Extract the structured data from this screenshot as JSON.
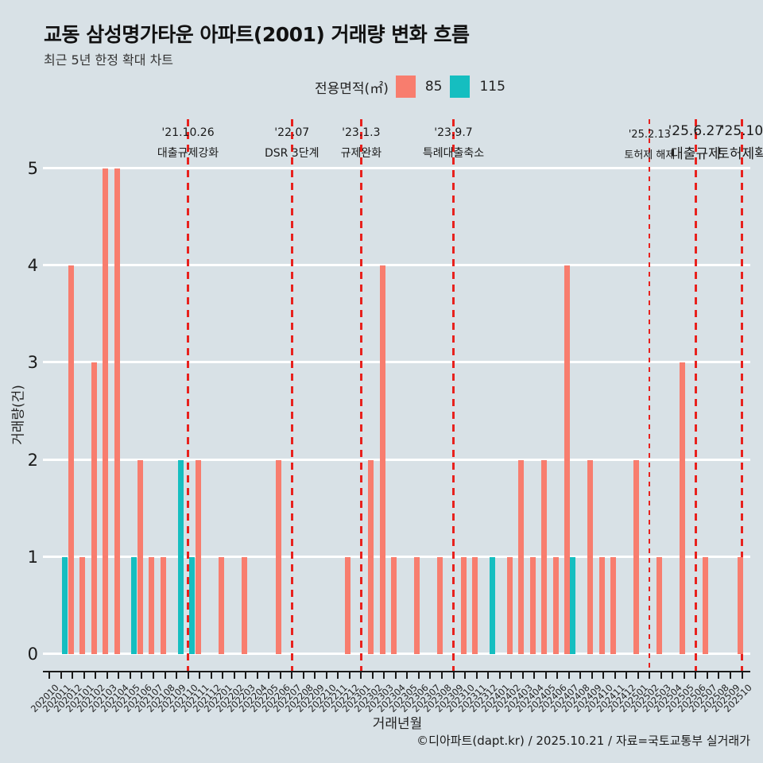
{
  "header": {
    "title": "교동 삼성명가타운 아파트(2001) 거래량 변화 흐름",
    "subtitle": "최근 5년 한정 확대 차트"
  },
  "legend": {
    "title": "전용면적(㎡)"
  },
  "axes": {
    "y_title": "거래량(건)",
    "x_title": "거래년월"
  },
  "footer": {
    "credit": "©디아파트(dapt.kr) / 2025.10.21 / 자료=국토교통부 실거래가"
  },
  "colors": {
    "background": "#d8e1e6",
    "gridline": "#ffffff",
    "axis": "#1a1a1a",
    "event_line": "#e8211d",
    "series_85": "#f87d6e",
    "series_115": "#15bec0"
  },
  "chart_data": {
    "type": "bar",
    "title": "교동 삼성명가타운 아파트(2001) 거래량 변화 흐름",
    "subtitle": "최근 5년 한정 확대 차트",
    "xlabel": "거래년월",
    "ylabel": "거래량(건)",
    "ylim": [
      0,
      5
    ],
    "y_ticks": [
      0,
      1,
      2,
      3,
      4,
      5
    ],
    "grid": true,
    "legend_title": "전용면적(㎡)",
    "legend_position": "top",
    "categories": [
      "202010",
      "202011",
      "202012",
      "202101",
      "202102",
      "202103",
      "202104",
      "202105",
      "202106",
      "202107",
      "202108",
      "202109",
      "202110",
      "202111",
      "202112",
      "202201",
      "202202",
      "202203",
      "202204",
      "202205",
      "202206",
      "202207",
      "202208",
      "202209",
      "202210",
      "202211",
      "202212",
      "202301",
      "202302",
      "202303",
      "202304",
      "202305",
      "202306",
      "202307",
      "202308",
      "202309",
      "202310",
      "202311",
      "202312",
      "202401",
      "202402",
      "202403",
      "202404",
      "202405",
      "202406",
      "202407",
      "202408",
      "202409",
      "202410",
      "202411",
      "202412",
      "202501",
      "202502",
      "202503",
      "202504",
      "202505",
      "202506",
      "202507",
      "202508",
      "202509",
      "202510"
    ],
    "series": [
      {
        "name": "85",
        "color": "#f87d6e",
        "values": [
          0,
          0,
          4,
          1,
          3,
          5,
          5,
          0,
          2,
          1,
          1,
          0,
          0,
          2,
          0,
          1,
          0,
          1,
          0,
          0,
          2,
          0,
          0,
          0,
          0,
          0,
          1,
          0,
          2,
          4,
          1,
          0,
          1,
          0,
          1,
          0,
          1,
          1,
          0,
          0,
          1,
          2,
          1,
          2,
          1,
          4,
          0,
          2,
          1,
          1,
          0,
          2,
          0,
          1,
          0,
          3,
          0,
          1,
          0,
          0,
          1
        ]
      },
      {
        "name": "115",
        "color": "#15bec0",
        "values": [
          0,
          1,
          0,
          0,
          0,
          0,
          0,
          1,
          0,
          0,
          0,
          2,
          1,
          0,
          0,
          0,
          0,
          0,
          0,
          0,
          0,
          0,
          0,
          0,
          0,
          0,
          0,
          0,
          0,
          0,
          0,
          0,
          0,
          0,
          0,
          0,
          0,
          0,
          1,
          0,
          0,
          0,
          0,
          0,
          0,
          1,
          0,
          0,
          0,
          0,
          0,
          0,
          0,
          0,
          0,
          0,
          0,
          0,
          0,
          0,
          0
        ]
      }
    ],
    "annotations": [
      {
        "date": "'21.10.26",
        "label": "대출규제강화",
        "month": "202110",
        "size": "md"
      },
      {
        "date": "'22.07",
        "label": "DSR 3단계",
        "month": "202207",
        "size": "md"
      },
      {
        "date": "'23.1.3",
        "label": "규제완화",
        "month": "202301",
        "size": "md"
      },
      {
        "date": "'23.9.7",
        "label": "특례대출축소",
        "month": "202309",
        "size": "md"
      },
      {
        "date": "'25.2.13",
        "label": "토허제 해제",
        "month": "202502",
        "size": "sm"
      },
      {
        "date": "'25.6.27",
        "label": "대출규제",
        "month": "202506",
        "size": "lg"
      },
      {
        "date": "'25.10",
        "label": "토허제확",
        "month": "202510",
        "size": "lg"
      }
    ]
  }
}
